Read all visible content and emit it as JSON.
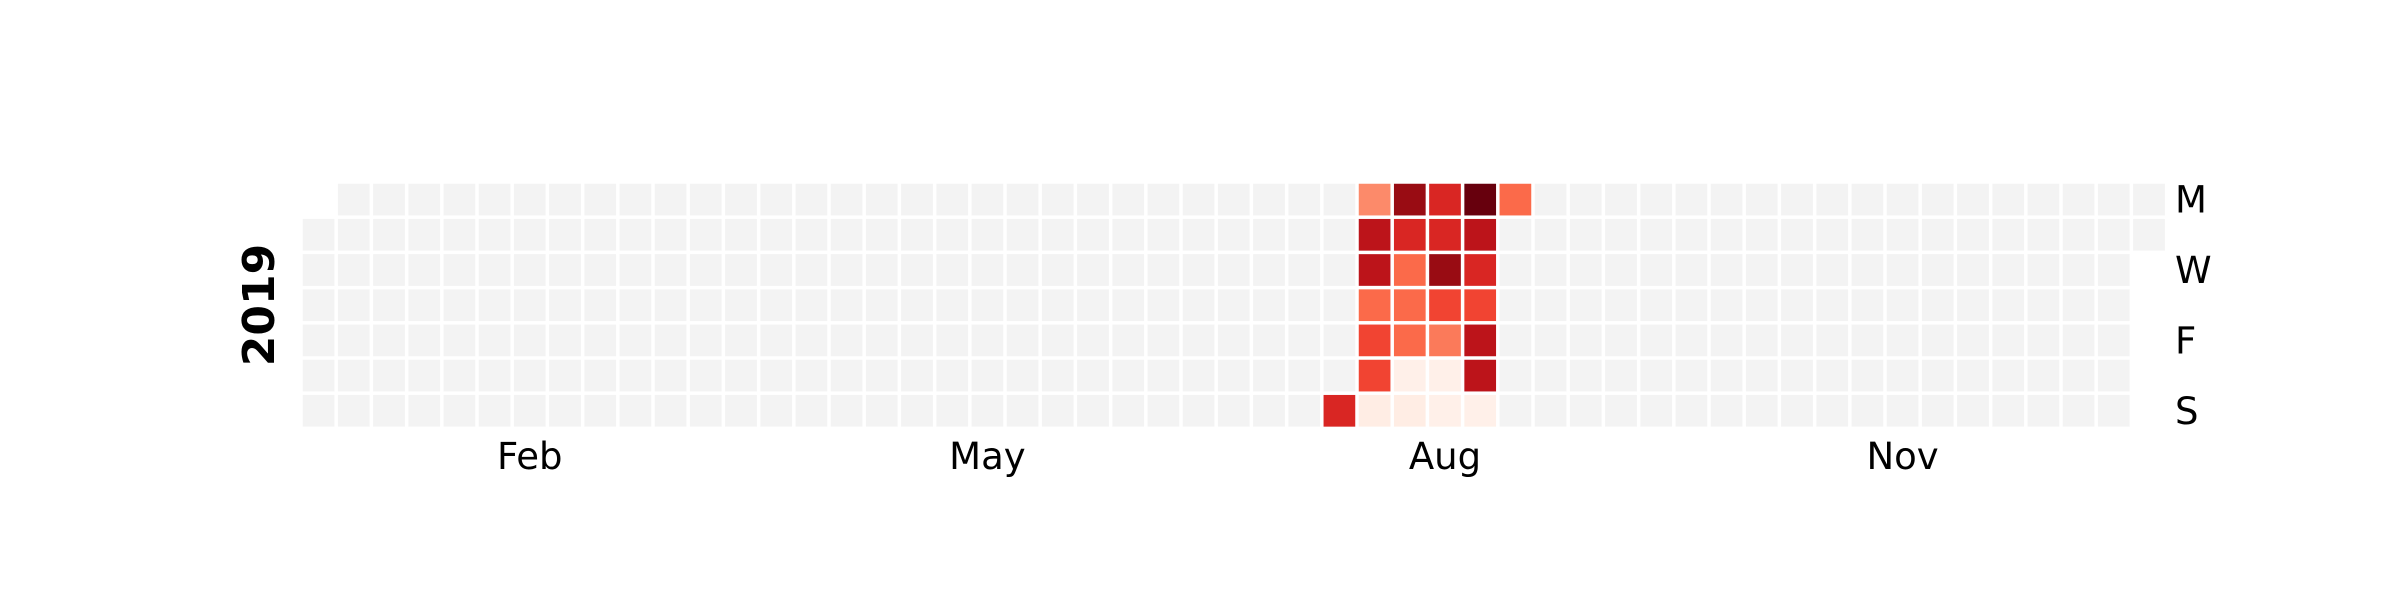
{
  "chart_data": {
    "type": "heatmap",
    "title": "",
    "year": "2019",
    "start_date": "2019-01-01",
    "end_date": "2019-12-31",
    "colormap": "Reds",
    "empty_color": "#f3f3f3",
    "vmin": 0,
    "vmax": 10,
    "month_labels": [
      "Feb",
      "May",
      "Aug",
      "Nov"
    ],
    "weekday_labels": [
      "M",
      "W",
      "F",
      "S"
    ],
    "values": [
      {
        "date": "2019-07-28",
        "value": 7
      },
      {
        "date": "2019-07-29",
        "value": 4
      },
      {
        "date": "2019-07-30",
        "value": 8
      },
      {
        "date": "2019-07-31",
        "value": 8
      },
      {
        "date": "2019-08-01",
        "value": 5
      },
      {
        "date": "2019-08-02",
        "value": 6
      },
      {
        "date": "2019-08-03",
        "value": 6
      },
      {
        "date": "2019-08-04",
        "value": 0.5
      },
      {
        "date": "2019-08-05",
        "value": 9
      },
      {
        "date": "2019-08-06",
        "value": 7
      },
      {
        "date": "2019-08-07",
        "value": 5
      },
      {
        "date": "2019-08-08",
        "value": 5
      },
      {
        "date": "2019-08-09",
        "value": 5
      },
      {
        "date": "2019-08-10",
        "value": 0.3
      },
      {
        "date": "2019-08-11",
        "value": 0.5
      },
      {
        "date": "2019-08-12",
        "value": 7
      },
      {
        "date": "2019-08-13",
        "value": 7
      },
      {
        "date": "2019-08-14",
        "value": 9
      },
      {
        "date": "2019-08-15",
        "value": 6
      },
      {
        "date": "2019-08-16",
        "value": 4.5
      },
      {
        "date": "2019-08-17",
        "value": 0.3
      },
      {
        "date": "2019-08-18",
        "value": 0.3
      },
      {
        "date": "2019-08-19",
        "value": 10
      },
      {
        "date": "2019-08-20",
        "value": 8
      },
      {
        "date": "2019-08-21",
        "value": 7
      },
      {
        "date": "2019-08-22",
        "value": 6
      },
      {
        "date": "2019-08-23",
        "value": 8
      },
      {
        "date": "2019-08-24",
        "value": 8
      },
      {
        "date": "2019-08-25",
        "value": 0.3
      },
      {
        "date": "2019-08-26",
        "value": 5
      }
    ]
  }
}
